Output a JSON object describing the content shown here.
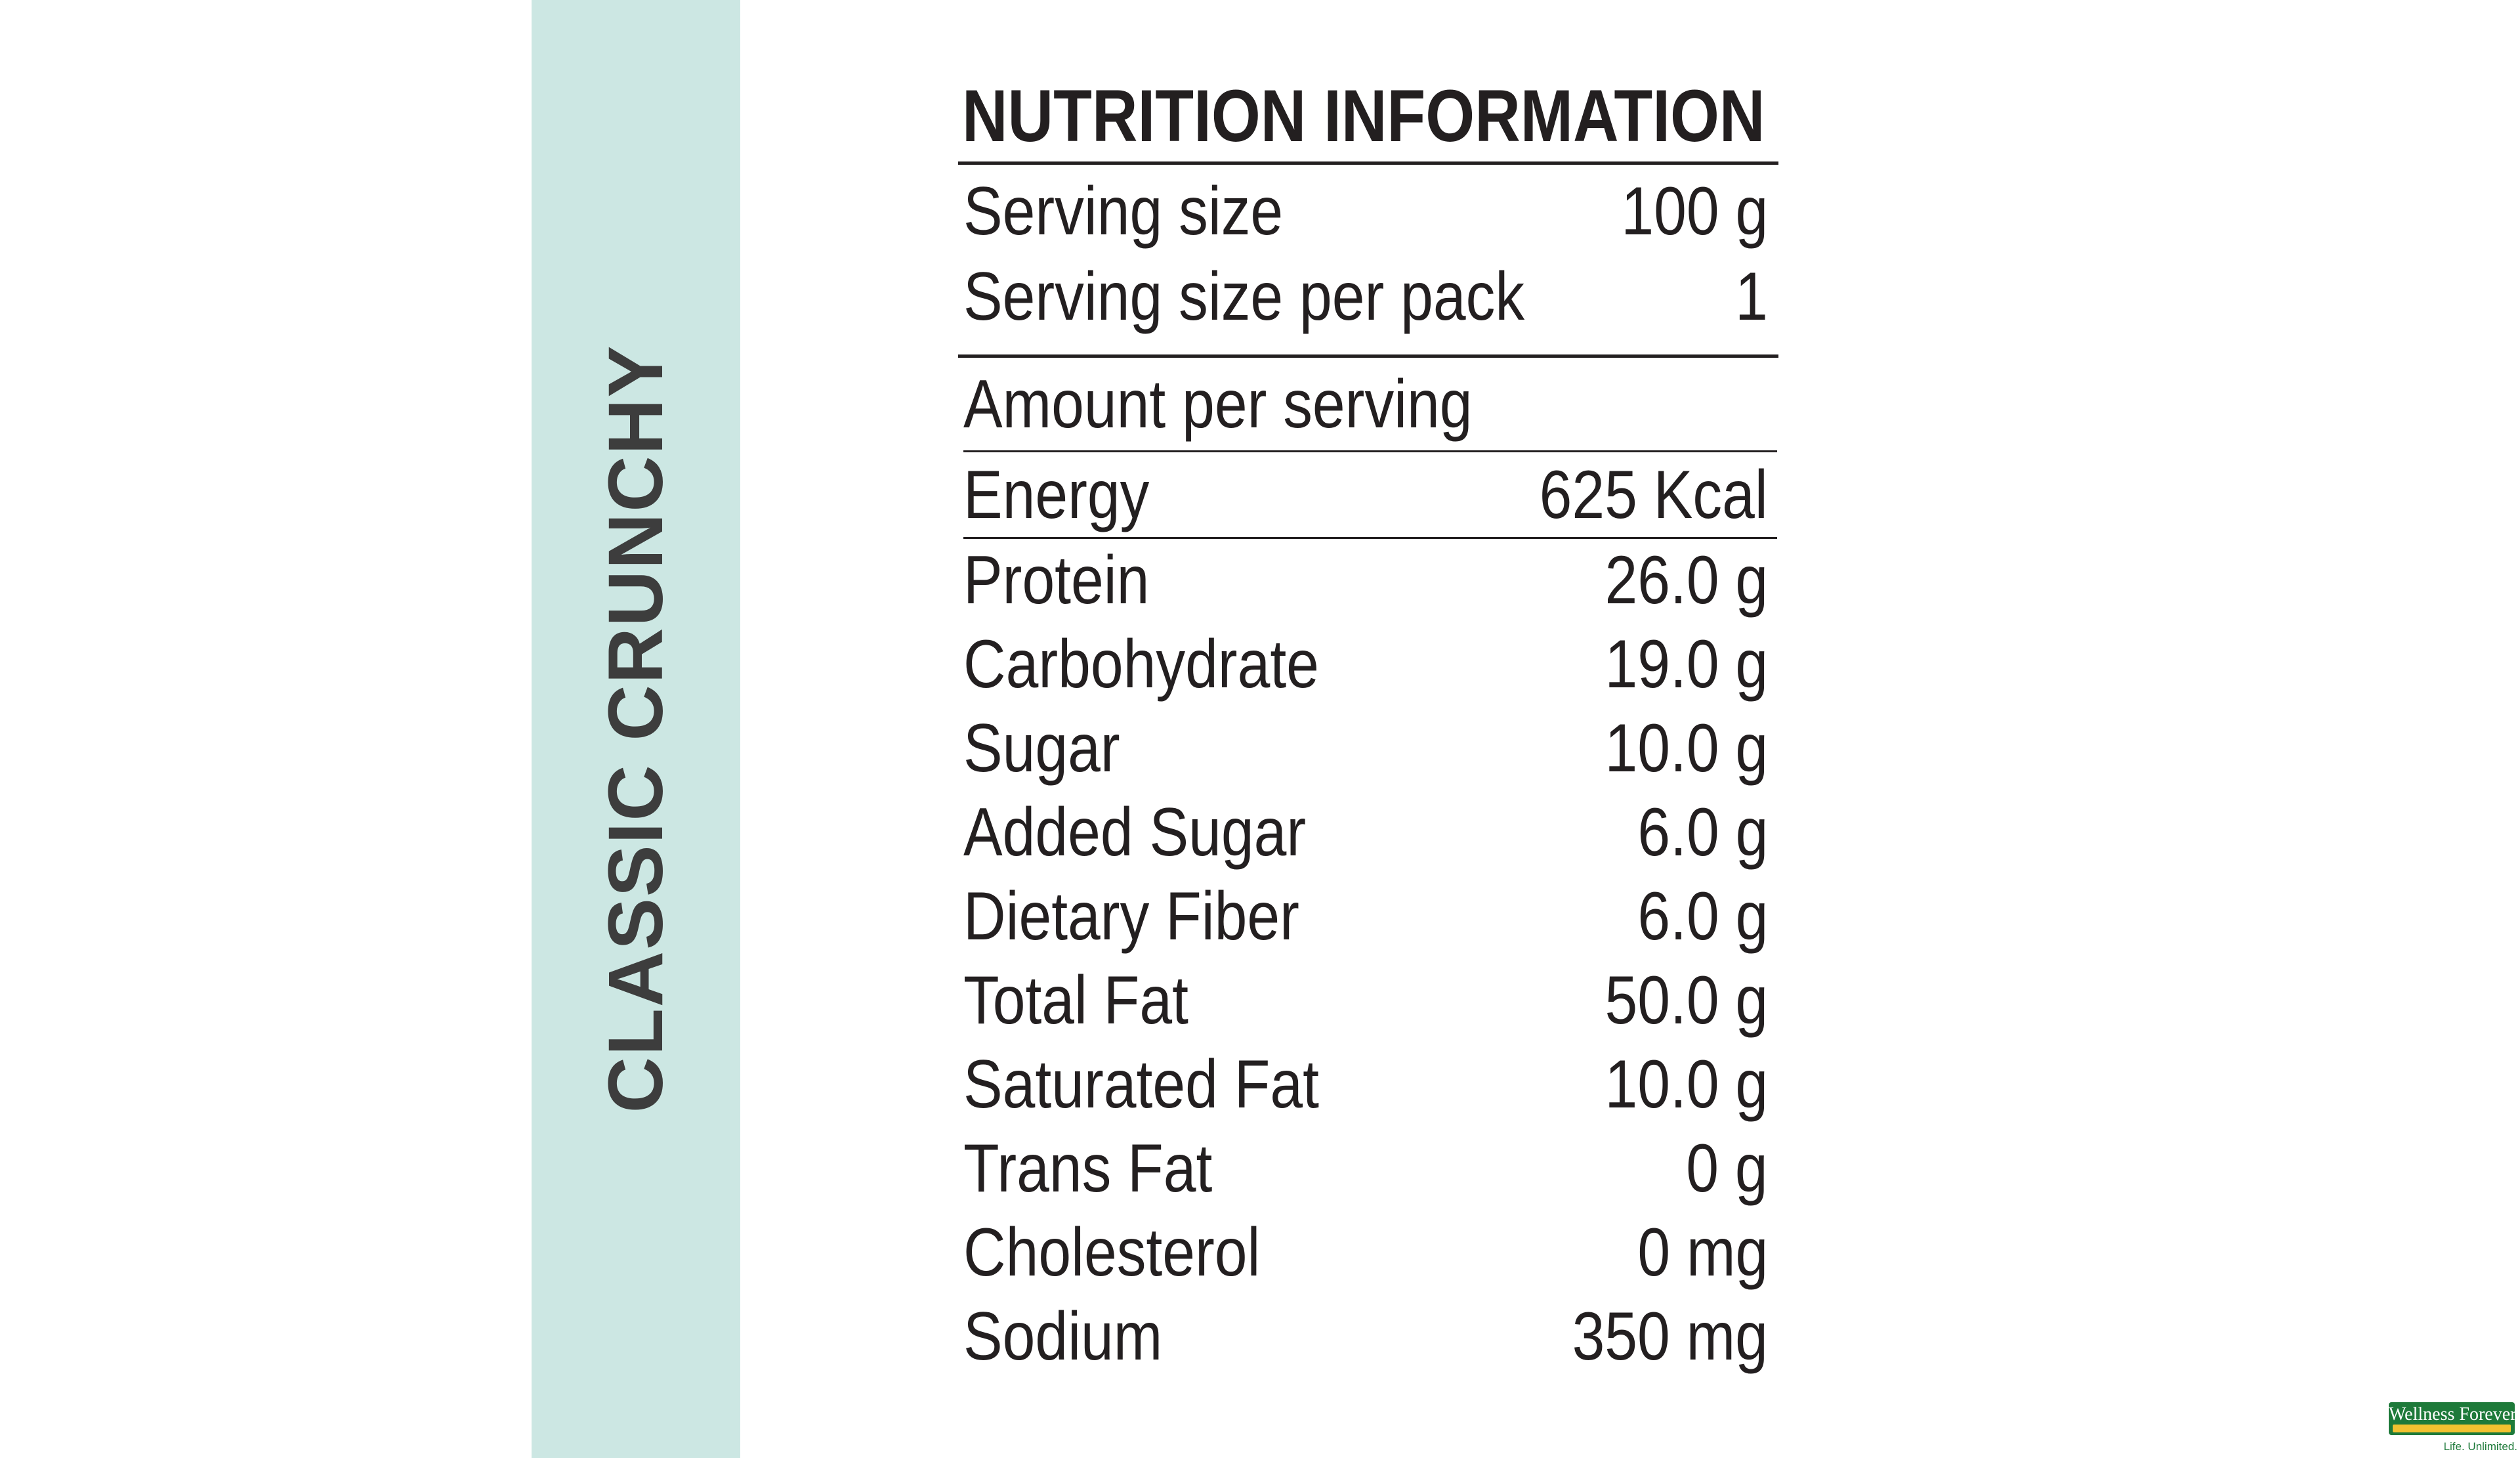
{
  "side_title": "CLASSIC CRUNCHY",
  "panel": {
    "title": "NUTRITION INFORMATION",
    "serving": [
      {
        "label": "Serving size",
        "value": "100 g"
      },
      {
        "label": "Serving size per pack",
        "value": "1"
      }
    ],
    "amount_header": "Amount per serving",
    "energy": {
      "label": "Energy",
      "value": "625 Kcal"
    },
    "nutrients": [
      {
        "label": "Protein",
        "value": "26.0 g"
      },
      {
        "label": "Carbohydrate",
        "value": "19.0  g"
      },
      {
        "label": "Sugar",
        "value": "10.0 g"
      },
      {
        "label": "Added Sugar",
        "value": "6.0 g"
      },
      {
        "label": "Dietary Fiber",
        "value": "6.0 g"
      },
      {
        "label": "Total Fat",
        "value": "50.0 g"
      },
      {
        "label": "Saturated Fat",
        "value": "10.0 g"
      },
      {
        "label": "Trans Fat",
        "value": "0 g"
      },
      {
        "label": "Cholesterol",
        "value": "0 mg"
      },
      {
        "label": "Sodium",
        "value": "350 mg"
      }
    ]
  },
  "logo": {
    "name": "Wellness Forever",
    "tagline": "Life. Unlimited."
  },
  "colors": {
    "band": "#cce7e3",
    "text": "#231f20",
    "logo_green": "#1e7a3a"
  }
}
